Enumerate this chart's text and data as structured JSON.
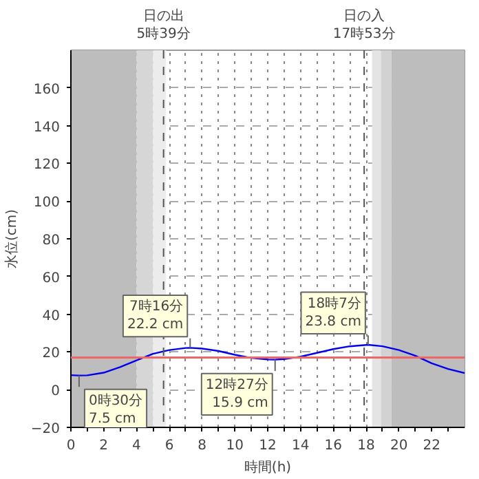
{
  "chart_data": {
    "type": "line",
    "xlabel": "時間(h)",
    "ylabel": "水位(cm)",
    "x": [
      0,
      0.5,
      1,
      2,
      3,
      4,
      5,
      6,
      7,
      7.27,
      8,
      9,
      10,
      11,
      12,
      12.45,
      13,
      14,
      15,
      16,
      17,
      18.12,
      19,
      20,
      21,
      22,
      23,
      24
    ],
    "series": [
      {
        "color": "#0000ee",
        "values": [
          7.7,
          7.5,
          7.6,
          9,
          12,
          15.5,
          19,
          21,
          22.1,
          22.2,
          21.8,
          20.5,
          18.5,
          16.8,
          16,
          15.9,
          16.2,
          17.5,
          19.5,
          21.5,
          23,
          23.8,
          23,
          21,
          18,
          14,
          11,
          8.8
        ]
      }
    ],
    "xlim": [
      0,
      24
    ],
    "xticks": [
      0,
      {
        "value": 1,
        "label": null
      },
      2,
      {
        "value": 3,
        "label": null
      },
      4,
      {
        "value": 5,
        "label": null
      },
      6,
      {
        "value": 7,
        "label": null
      },
      8,
      {
        "value": 9,
        "label": null
      },
      10,
      {
        "value": 11,
        "label": null
      },
      12,
      {
        "value": 13,
        "label": null
      },
      14,
      {
        "value": 15,
        "label": null
      },
      16,
      {
        "value": 17,
        "label": null
      },
      18,
      {
        "value": 19,
        "label": null
      },
      20,
      {
        "value": 21,
        "label": null
      },
      22,
      {
        "value": 23,
        "label": null
      }
    ],
    "ylim": [
      -20,
      180
    ],
    "yticks": [
      -20,
      0,
      20,
      40,
      60,
      80,
      100,
      120,
      140,
      160
    ],
    "grid": true,
    "marker": "none",
    "line_style": "solid",
    "bands": [
      {
        "axis": "x",
        "from": 0,
        "to": 4,
        "color": "#bdbdbd"
      },
      {
        "axis": "x",
        "from": 4,
        "to": 5,
        "color": "#d6d6d6"
      },
      {
        "axis": "x",
        "from": 5,
        "to": 5.8,
        "color": "#ececec"
      },
      {
        "axis": "x",
        "from": 18.36,
        "to": 18.9,
        "color": "#e4e4e4"
      },
      {
        "axis": "x",
        "from": 18.9,
        "to": 19.55,
        "color": "#d2d2d2"
      },
      {
        "axis": "x",
        "from": 19.55,
        "to": 24,
        "color": "#bdbdbd"
      }
    ],
    "ref_lines": [
      {
        "axis": "y",
        "value": 17,
        "color": "#ee6666",
        "line_style": "solid"
      },
      {
        "axis": "x",
        "value": 5.65,
        "label": "日の出\n5時39分",
        "color": "#555555",
        "line_style": "dashed"
      },
      {
        "axis": "x",
        "value": 17.88,
        "label": "日の入\n17時53分",
        "color": "#555555",
        "line_style": "dashed"
      }
    ],
    "annotations": [
      {
        "text": "0時30分\n7.5 cm",
        "x": 0.5,
        "y": 7.5
      },
      {
        "text": "7時16分\n22.2 cm",
        "x": 7.27,
        "y": 22.2
      },
      {
        "text": "12時27分\n15.9 cm",
        "x": 12.45,
        "y": 15.9
      },
      {
        "text": "18時7分\n23.8 cm",
        "x": 18.12,
        "y": 23.8
      }
    ]
  }
}
